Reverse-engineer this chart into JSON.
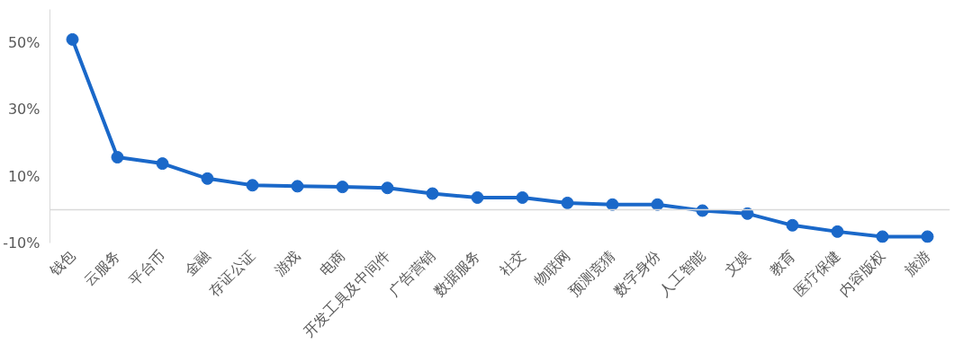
{
  "chart_data": {
    "type": "line",
    "categories": [
      "钱包",
      "云服务",
      "平台币",
      "金融",
      "存证公证",
      "游戏",
      "电商",
      "开发工具及中间件",
      "广告营销",
      "数据服务",
      "社交",
      "物联网",
      "预测竞猜",
      "数字身份",
      "人工智能",
      "文娱",
      "教育",
      "医疗保健",
      "内容版权",
      "旅游"
    ],
    "series": [
      {
        "color": "#1a68c9",
        "values": [
          51,
          15.7,
          13.8,
          9.3,
          7.3,
          7.0,
          6.8,
          6.5,
          4.8,
          3.6,
          3.6,
          2.0,
          1.5,
          1.5,
          -0.3,
          -1.2,
          -4.7,
          -6.6,
          -8.1,
          -8.1
        ]
      }
    ],
    "ylim": [
      -10,
      60
    ],
    "yticks": [
      {
        "value": 50,
        "label": "50%"
      },
      {
        "value": 30,
        "label": "30%"
      },
      {
        "value": 10,
        "label": "10%"
      },
      {
        "value": -10,
        "label": "-10%"
      }
    ],
    "marker": "circle",
    "line_style": "solid"
  }
}
